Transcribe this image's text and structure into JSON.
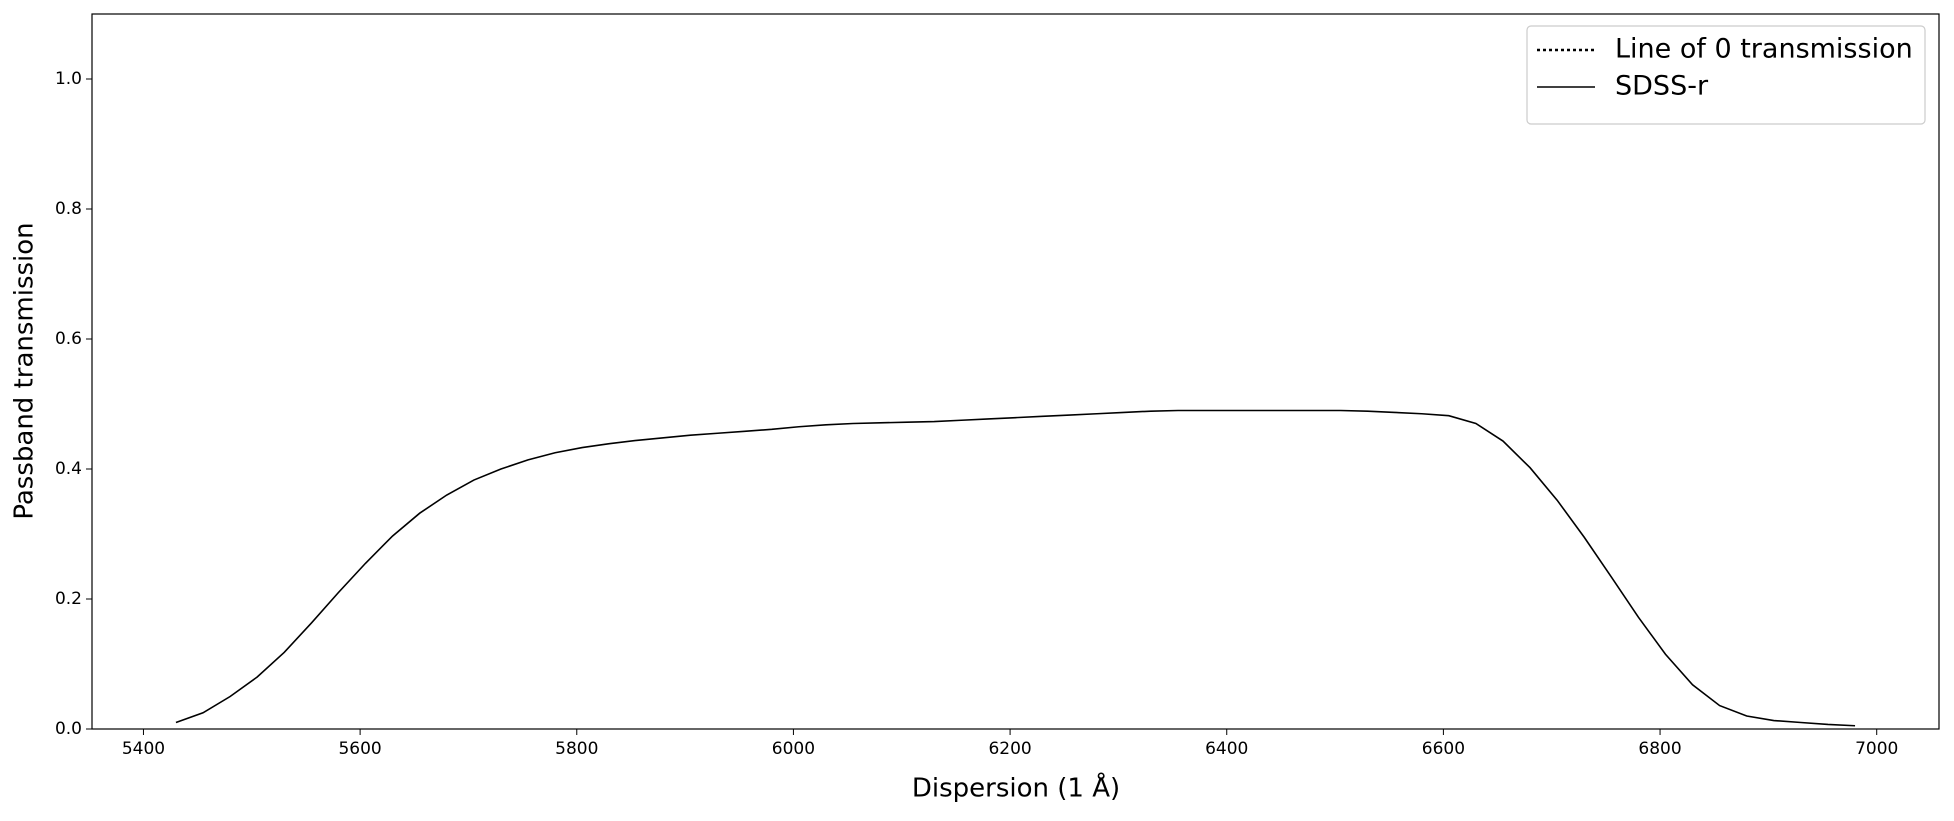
{
  "chart_data": {
    "type": "line",
    "x_label": "Dispersion (1 Å)",
    "y_label": "Passband transmission",
    "xlim": [
      5352.5,
      7057.5
    ],
    "xticks": [
      5400,
      5600,
      5800,
      6000,
      6200,
      6400,
      6600,
      6800,
      7000
    ],
    "ylim": [
      0,
      1.1
    ],
    "yticks": [
      {
        "value": 0,
        "label": "0.0"
      },
      0.2,
      0.4,
      0.6,
      0.8,
      {
        "value": 1,
        "label": "1.0"
      }
    ],
    "legend": "upper right",
    "series": [
      {
        "name": "Line of 0 transmission",
        "color": "#000000",
        "style": "dotted",
        "x": [
          5352.5,
          7057.5
        ],
        "values": [
          0,
          0
        ]
      },
      {
        "name": "SDSS-r",
        "color": "#000000",
        "style": "solid",
        "x": [
          5430,
          5455,
          5480,
          5505,
          5530,
          5555,
          5580,
          5605,
          5630,
          5655,
          5680,
          5705,
          5730,
          5755,
          5780,
          5805,
          5830,
          5855,
          5880,
          5905,
          5930,
          5955,
          5980,
          6005,
          6030,
          6055,
          6080,
          6105,
          6130,
          6155,
          6180,
          6205,
          6230,
          6255,
          6280,
          6305,
          6330,
          6355,
          6380,
          6405,
          6430,
          6455,
          6480,
          6505,
          6530,
          6555,
          6580,
          6605,
          6630,
          6655,
          6680,
          6705,
          6730,
          6755,
          6780,
          6805,
          6830,
          6855,
          6880,
          6905,
          6930,
          6955,
          6980
        ],
        "values": [
          0.01,
          0.025,
          0.05,
          0.08,
          0.118,
          0.163,
          0.21,
          0.255,
          0.297,
          0.332,
          0.36,
          0.383,
          0.4,
          0.414,
          0.425,
          0.433,
          0.439,
          0.444,
          0.448,
          0.452,
          0.455,
          0.458,
          0.461,
          0.465,
          0.468,
          0.47,
          0.471,
          0.472,
          0.473,
          0.475,
          0.477,
          0.479,
          0.481,
          0.483,
          0.485,
          0.487,
          0.489,
          0.49,
          0.49,
          0.49,
          0.49,
          0.49,
          0.49,
          0.49,
          0.489,
          0.487,
          0.485,
          0.482,
          0.47,
          0.443,
          0.402,
          0.352,
          0.295,
          0.234,
          0.172,
          0.115,
          0.068,
          0.036,
          0.02,
          0.013,
          0.01,
          0.007,
          0.005
        ]
      }
    ]
  }
}
